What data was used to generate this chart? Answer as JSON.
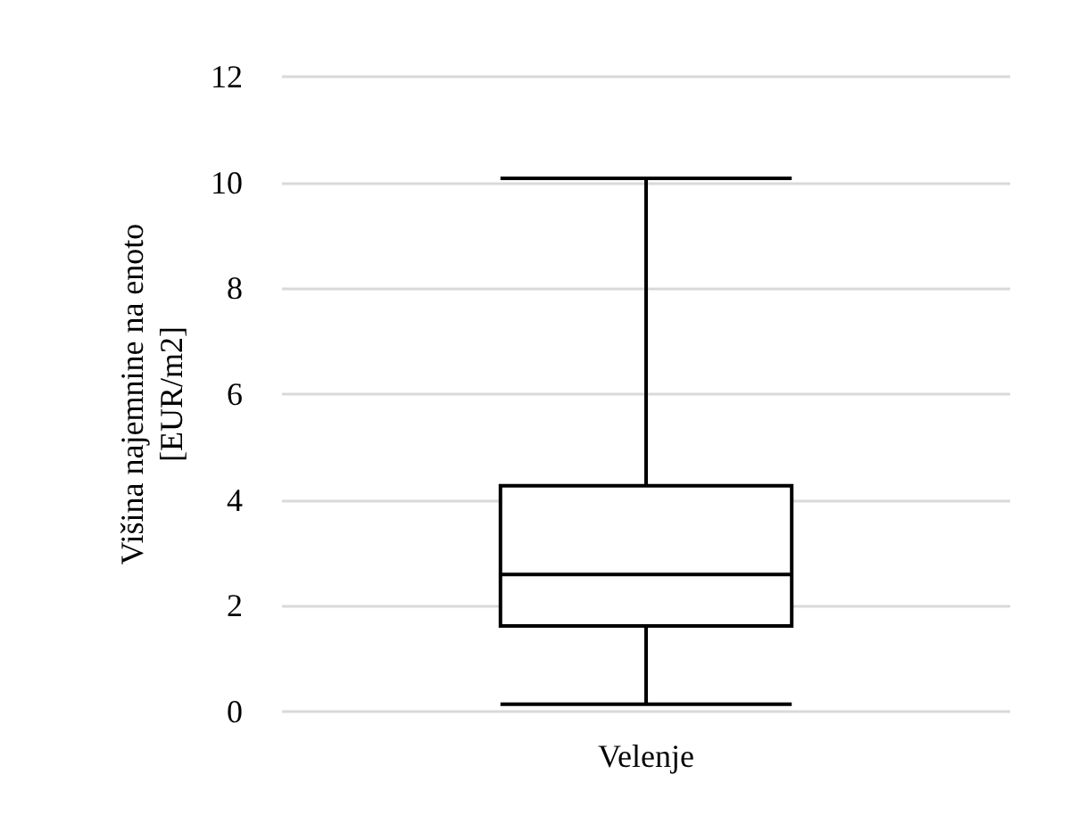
{
  "chart_data": {
    "type": "box",
    "categories": [
      "Velenje"
    ],
    "boxes": [
      {
        "low": 0.14,
        "q1": 1.62,
        "median": 2.59,
        "q3": 4.27,
        "high": 10.08
      }
    ],
    "color": "#000000",
    "ylabel": "Višina najemnine na enoto\n[EUR/m2]",
    "ylim": [
      0,
      12
    ],
    "yticks": [
      0,
      2,
      4,
      6,
      8,
      10,
      12
    ],
    "grid": "y"
  }
}
